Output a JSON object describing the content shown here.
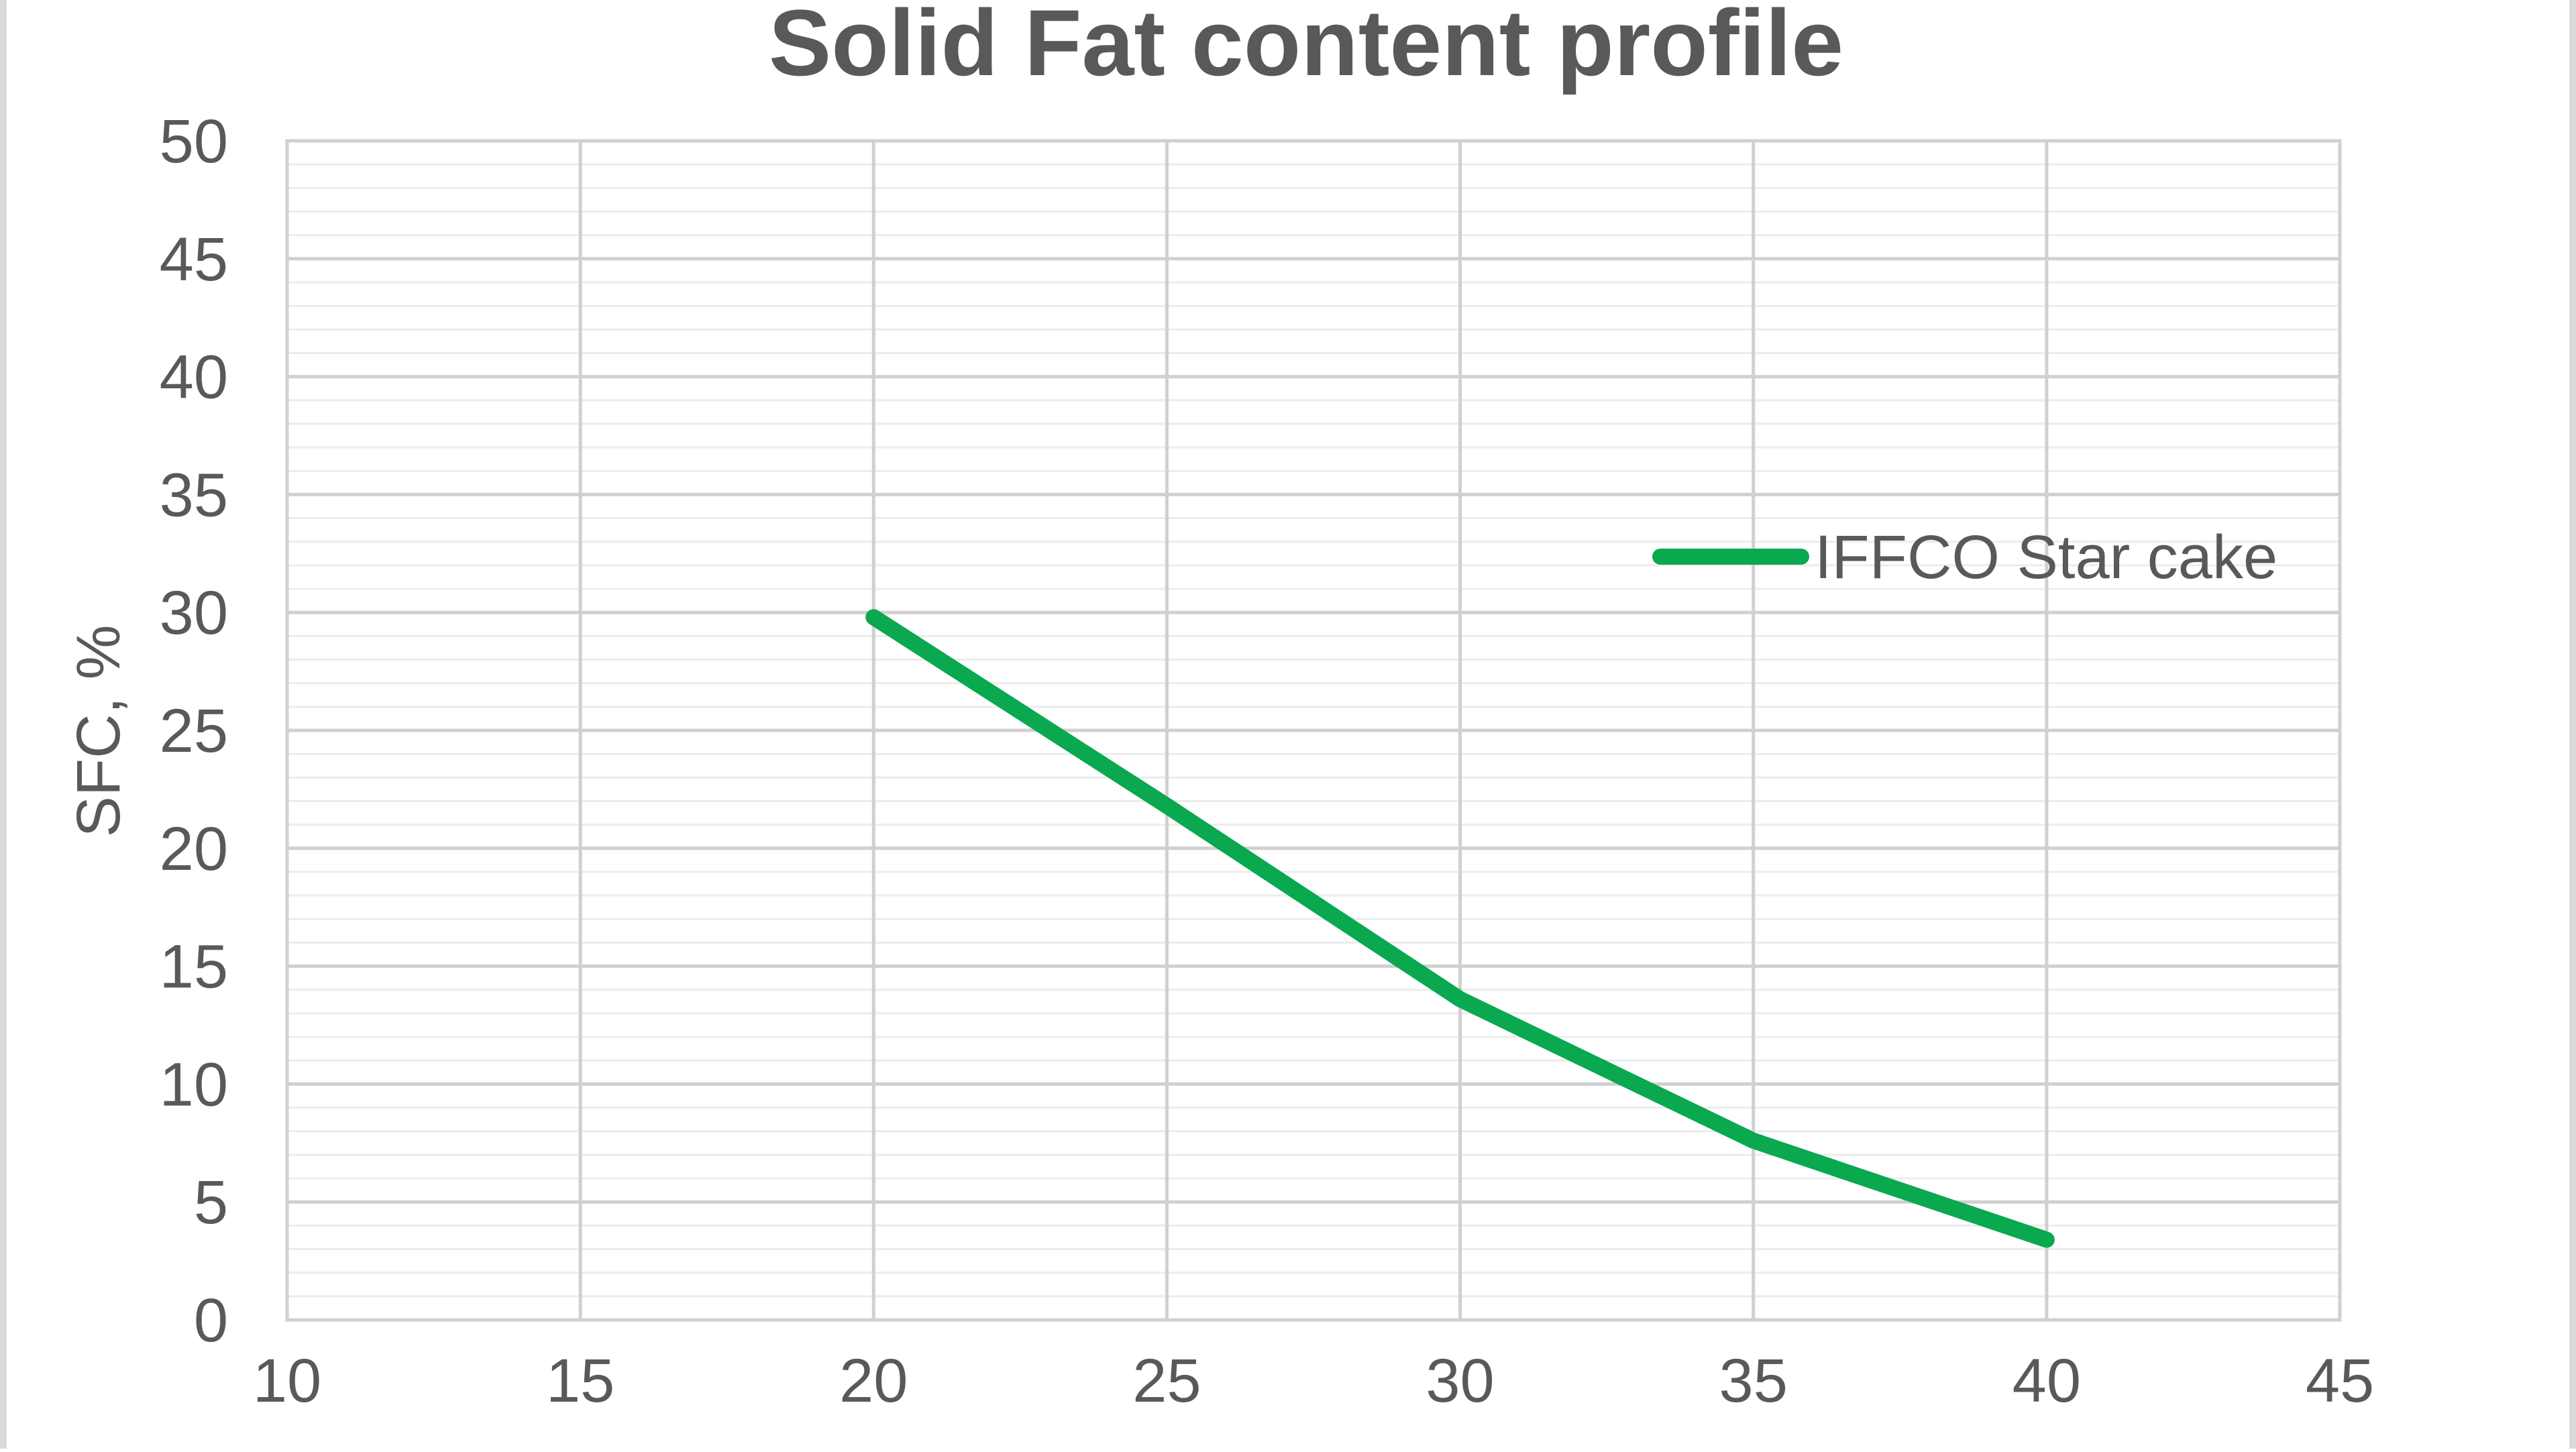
{
  "chart_data": {
    "type": "line",
    "title": "Solid Fat content profile",
    "xlabel": "",
    "ylabel": "SFC, %",
    "xlim": [
      10,
      45
    ],
    "ylim": [
      0,
      50
    ],
    "x_ticks": [
      10,
      15,
      20,
      25,
      30,
      35,
      40,
      45
    ],
    "y_ticks": [
      0,
      5,
      10,
      15,
      20,
      25,
      30,
      35,
      40,
      45,
      50
    ],
    "grid": true,
    "legend_position": "right",
    "series": [
      {
        "name": "IFFCO Star cake",
        "color": "#0aa84f",
        "x": [
          20,
          25,
          30,
          35,
          40
        ],
        "y": [
          29.8,
          21.8,
          13.6,
          7.6,
          3.4
        ]
      }
    ]
  }
}
